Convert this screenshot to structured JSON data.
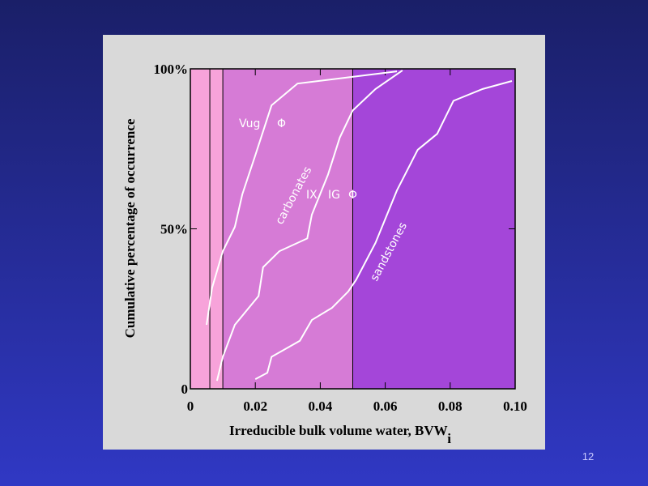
{
  "chart_data": {
    "type": "line",
    "y_label": "Cumulative percentage of occurrence",
    "x_label": "Irreducible bulk volume water,   BVW",
    "x_label_subscript": "i",
    "xlim": [
      0,
      0.1
    ],
    "xticks": [
      0,
      0.02,
      0.04,
      0.06,
      0.08,
      {
        "value": 0.1,
        "label": "0.10"
      }
    ],
    "ylim": [
      0,
      100
    ],
    "yticks": [
      0,
      {
        "value": 50,
        "label": "50%"
      },
      {
        "value": 100,
        "label": "100%"
      }
    ],
    "shaded_regions": [
      {
        "x0": 0,
        "x1": 0.01,
        "color": "#f7a3da"
      },
      {
        "x0": 0.01,
        "x1": 0.05,
        "color": "#d67bd6"
      },
      {
        "x0": 0.05,
        "x1": 0.1,
        "color": "#a446d9"
      }
    ],
    "vlines": [
      0.006,
      0.01,
      0.05
    ],
    "series": [
      {
        "color": "#ffffff",
        "x": [
          0.005,
          0.0067,
          0.01,
          0.0137,
          0.016,
          0.02,
          0.025,
          0.033,
          0.0636
        ],
        "values": [
          20,
          31.6,
          43,
          50.6,
          60.8,
          73,
          88.6,
          95.4,
          99.2
        ]
      },
      {
        "color": "#ffffff",
        "x": [
          0.0082,
          0.01,
          0.0137,
          0.021,
          0.0224,
          0.0274,
          0.036,
          0.0374,
          0.0424,
          0.046,
          0.05,
          0.057,
          0.0653
        ],
        "values": [
          2.5,
          10,
          20,
          29,
          38,
          43,
          47,
          54.4,
          67,
          78.5,
          87,
          93.7,
          99.5
        ]
      },
      {
        "color": "#ffffff",
        "x": [
          0.02,
          0.0237,
          0.025,
          0.0337,
          0.0374,
          0.0436,
          0.0486,
          0.051,
          0.057,
          0.0636,
          0.07,
          0.076,
          0.081,
          0.09,
          0.099
        ],
        "values": [
          3,
          5,
          10,
          15,
          21.5,
          25.3,
          30.4,
          34,
          45.6,
          62,
          74.7,
          79.7,
          90,
          93.7,
          96.2
        ]
      }
    ],
    "annotations": [
      "Vug",
      "Φ",
      "carbonates",
      "IX",
      "IG",
      "Φ",
      "sandstones"
    ]
  },
  "slide_number": "12"
}
